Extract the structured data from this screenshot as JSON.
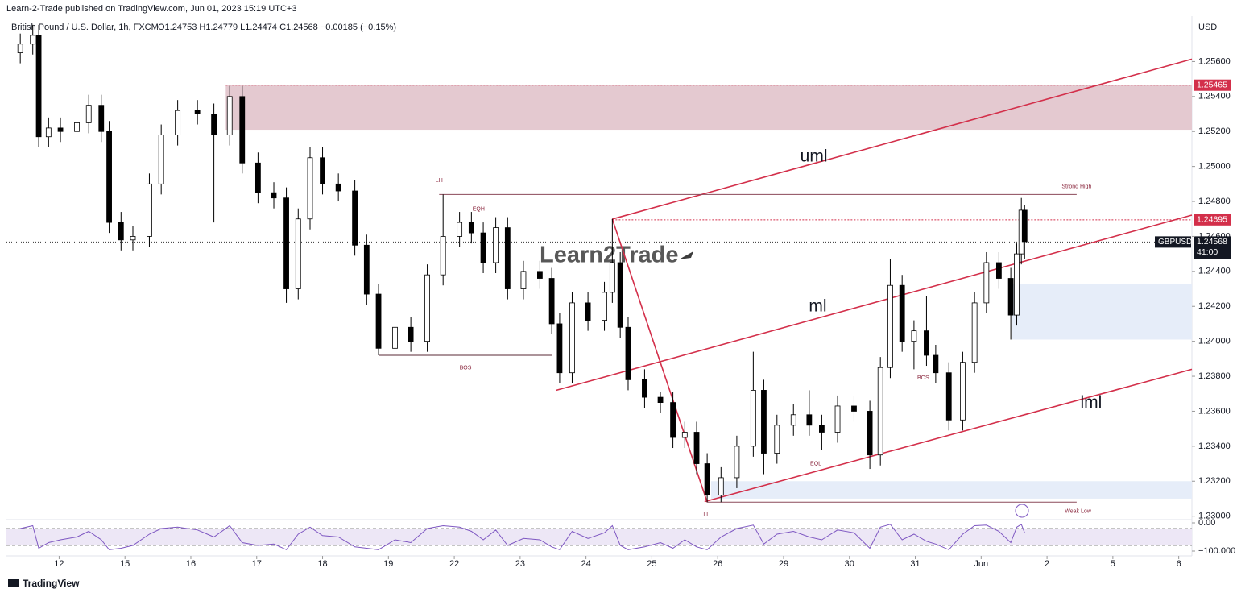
{
  "chart_data": {
    "type": "candlestick",
    "title": "Learn-2-Trade published on TradingView.com, Jun 01, 2023 15:19 UTC+3",
    "subtitle": "British Pound / U.S. Dollar, 1h, FXCM",
    "ohlc_text": "O1.24753 H1.24779 L1.24474 C1.24568 −0.00185 (−0.15%)",
    "currency": "USD",
    "watermark": "Learn2Trade",
    "footer": "TradingView",
    "up_color": "#ffffff",
    "down_color": "#000000",
    "line_color": "#d32f4a",
    "xlim": [
      -0.8,
      17.2
    ],
    "ylim": [
      1.2298,
      1.2586
    ],
    "xticks": [
      {
        "value": 0,
        "label": "12"
      },
      {
        "value": 1,
        "label": "15"
      },
      {
        "value": 2,
        "label": "16"
      },
      {
        "value": 3,
        "label": "17"
      },
      {
        "value": 4,
        "label": "18"
      },
      {
        "value": 5,
        "label": "19"
      },
      {
        "value": 6,
        "label": "22"
      },
      {
        "value": 7,
        "label": "23"
      },
      {
        "value": 8,
        "label": "24"
      },
      {
        "value": 9,
        "label": "25"
      },
      {
        "value": 10,
        "label": "26"
      },
      {
        "value": 11,
        "label": "29"
      },
      {
        "value": 12,
        "label": "30"
      },
      {
        "value": 13,
        "label": "31"
      },
      {
        "value": 14,
        "label": "Jun"
      },
      {
        "value": 15,
        "label": "2"
      },
      {
        "value": 16,
        "label": "5"
      },
      {
        "value": 17,
        "label": "6"
      }
    ],
    "yticks": [
      {
        "value": 1.256,
        "label": "1.25600"
      },
      {
        "value": 1.254,
        "label": "1.25400"
      },
      {
        "value": 1.252,
        "label": "1.25200"
      },
      {
        "value": 1.25,
        "label": "1.25000"
      },
      {
        "value": 1.248,
        "label": "1.24800"
      },
      {
        "value": 1.246,
        "label": "1.24600"
      },
      {
        "value": 1.244,
        "label": "1.24400"
      },
      {
        "value": 1.242,
        "label": "1.24200"
      },
      {
        "value": 1.24,
        "label": "1.24000"
      },
      {
        "value": 1.238,
        "label": "1.23800"
      },
      {
        "value": 1.236,
        "label": "1.23600"
      },
      {
        "value": 1.234,
        "label": "1.23400"
      },
      {
        "value": 1.232,
        "label": "1.23200"
      },
      {
        "value": 1.23,
        "label": "1.23000"
      }
    ],
    "x": [
      -0.59,
      -0.4,
      -0.31,
      -0.16,
      0.02,
      0.27,
      0.45,
      0.64,
      0.76,
      0.94,
      1.12,
      1.37,
      1.55,
      1.8,
      2.1,
      2.35,
      2.59,
      2.78,
      3.02,
      3.26,
      3.45,
      3.63,
      3.81,
      4.0,
      4.24,
      4.49,
      4.67,
      4.85,
      5.1,
      5.34,
      5.59,
      5.83,
      6.08,
      6.26,
      6.44,
      6.63,
      6.81,
      7.05,
      7.3,
      7.48,
      7.6,
      7.79,
      8.03,
      8.28,
      8.4,
      8.52,
      8.64,
      8.89,
      9.13,
      9.32,
      9.5,
      9.68,
      9.84,
      10.05,
      10.29,
      10.54,
      10.7,
      10.9,
      11.15,
      11.39,
      11.58,
      11.82,
      12.07,
      12.31,
      12.47,
      12.62,
      12.8,
      12.98,
      13.17,
      13.31,
      13.51,
      13.72,
      13.9,
      14.08,
      14.27,
      14.45,
      14.54,
      14.61,
      14.66
    ],
    "open": [
      1.2565,
      1.257,
      1.2575,
      1.2517,
      1.2522,
      1.252,
      1.2525,
      1.2535,
      1.252,
      1.2468,
      1.2458,
      1.246,
      1.249,
      1.2518,
      1.2532,
      1.253,
      1.2518,
      1.254,
      1.2502,
      1.2485,
      1.2482,
      1.243,
      1.247,
      1.2505,
      1.249,
      1.2486,
      1.2455,
      1.2427,
      1.2396,
      1.2408,
      1.24,
      1.2438,
      1.246,
      1.2468,
      1.2462,
      1.2445,
      1.2465,
      1.243,
      1.244,
      1.2436,
      1.241,
      1.2382,
      1.2422,
      1.2412,
      1.2428,
      1.2445,
      1.2408,
      1.2378,
      1.2368,
      1.2365,
      1.2345,
      1.2348,
      1.233,
      1.2312,
      1.2322,
      1.234,
      1.2372,
      1.2336,
      1.2352,
      1.2358,
      1.2352,
      1.2348,
      1.2363,
      1.236,
      1.2335,
      1.2385,
      1.2432,
      1.24,
      1.2406,
      1.2392,
      1.2382,
      1.2355,
      1.2388,
      1.2422,
      1.2445,
      1.2436,
      1.2415,
      1.245,
      1.2475
    ],
    "high": [
      1.2576,
      1.2581,
      1.2581,
      1.2528,
      1.2528,
      1.2531,
      1.2541,
      1.2541,
      1.2526,
      1.2474,
      1.2466,
      1.2496,
      1.2524,
      1.2538,
      1.2538,
      1.2536,
      1.2546,
      1.2546,
      1.2508,
      1.2491,
      1.2488,
      1.2476,
      1.2511,
      1.2511,
      1.2496,
      1.2492,
      1.2461,
      1.2433,
      1.2414,
      1.2414,
      1.2444,
      1.2484,
      1.2474,
      1.2474,
      1.2468,
      1.2471,
      1.2471,
      1.2446,
      1.2446,
      1.2442,
      1.2416,
      1.2428,
      1.2428,
      1.2434,
      1.247,
      1.2451,
      1.2414,
      1.2384,
      1.2371,
      1.2371,
      1.2354,
      1.2354,
      1.2336,
      1.2328,
      1.2346,
      1.2394,
      1.2378,
      1.2358,
      1.2364,
      1.2372,
      1.2358,
      1.2369,
      1.2369,
      1.2366,
      1.2391,
      1.2447,
      1.2438,
      1.2412,
      1.2426,
      1.2398,
      1.2388,
      1.2394,
      1.2428,
      1.2451,
      1.2451,
      1.2442,
      1.2456,
      1.2482,
      1.2478
    ],
    "low": [
      1.2559,
      1.2564,
      1.2511,
      1.2511,
      1.2514,
      1.2514,
      1.2519,
      1.2514,
      1.2462,
      1.2452,
      1.2452,
      1.2454,
      1.2484,
      1.2512,
      1.2524,
      1.2468,
      1.2512,
      1.2496,
      1.2479,
      1.2476,
      1.2422,
      1.2424,
      1.2464,
      1.2484,
      1.248,
      1.2449,
      1.2421,
      1.2392,
      1.2392,
      1.2394,
      1.2394,
      1.2432,
      1.2454,
      1.2456,
      1.2439,
      1.2439,
      1.2424,
      1.2424,
      1.243,
      1.2404,
      1.2376,
      1.2376,
      1.2406,
      1.2406,
      1.2422,
      1.2402,
      1.2372,
      1.2362,
      1.2359,
      1.2339,
      1.2339,
      1.2324,
      1.2308,
      1.2308,
      1.2316,
      1.2334,
      1.2324,
      1.233,
      1.2346,
      1.2346,
      1.2338,
      1.2342,
      1.2354,
      1.2327,
      1.2329,
      1.2379,
      1.2394,
      1.2384,
      1.2386,
      1.2376,
      1.2349,
      1.2349,
      1.2382,
      1.2416,
      1.243,
      1.2401,
      1.2409,
      1.2444,
      1.2447
    ],
    "close": [
      1.257,
      1.2575,
      1.2517,
      1.2522,
      1.252,
      1.2525,
      1.2535,
      1.252,
      1.2468,
      1.2458,
      1.246,
      1.249,
      1.2518,
      1.2532,
      1.253,
      1.2518,
      1.254,
      1.2502,
      1.2485,
      1.2482,
      1.243,
      1.247,
      1.2505,
      1.249,
      1.2486,
      1.2455,
      1.2427,
      1.2396,
      1.2408,
      1.24,
      1.2438,
      1.246,
      1.2468,
      1.2462,
      1.2445,
      1.2465,
      1.243,
      1.244,
      1.2436,
      1.241,
      1.2382,
      1.2422,
      1.2412,
      1.2428,
      1.2445,
      1.2408,
      1.2378,
      1.2368,
      1.2365,
      1.2345,
      1.2348,
      1.233,
      1.2312,
      1.2322,
      1.234,
      1.2372,
      1.2336,
      1.2352,
      1.2358,
      1.2352,
      1.2348,
      1.2363,
      1.236,
      1.2335,
      1.2385,
      1.2432,
      1.24,
      1.2406,
      1.2392,
      1.2382,
      1.2355,
      1.2388,
      1.2422,
      1.2445,
      1.2436,
      1.2415,
      1.245,
      1.2475,
      1.2457
    ],
    "zones": [
      {
        "x0": 2.53,
        "x1": 17.2,
        "y0": 1.2521,
        "y1": 1.25465,
        "color": "#e4c9d0"
      },
      {
        "x0": 14.47,
        "x1": 17.2,
        "y0": 1.2401,
        "y1": 1.2433,
        "color": "#e6edf9"
      },
      {
        "x0": 9.9,
        "x1": 17.2,
        "y0": 1.231,
        "y1": 1.232,
        "color": "#e6edf9"
      }
    ],
    "price_levels": [
      {
        "from": 2.53,
        "value": 1.25465,
        "color": "#d32f4a"
      },
      {
        "from": 8.4,
        "value": 1.24695,
        "color": "#d32f4a"
      }
    ],
    "last_price": {
      "symbol": "GBPUSD",
      "value": 1.24568,
      "countdown": "41:00"
    },
    "segments": [
      {
        "x0": 8.4,
        "y0": 1.24699,
        "x1": 17.2,
        "y1": 1.25614,
        "color": "#d32f4a"
      },
      {
        "x0": 7.55,
        "y0": 1.2372,
        "x1": 17.2,
        "y1": 1.24722,
        "color": "#d32f4a"
      },
      {
        "x0": 9.8,
        "y0": 1.23083,
        "x1": 17.2,
        "y1": 1.2384,
        "color": "#d32f4a"
      },
      {
        "x0": 8.4,
        "y0": 1.24699,
        "x1": 9.84,
        "y1": 1.2308,
        "color": "#d32f4a"
      },
      {
        "x0": 5.77,
        "y0": 1.2484,
        "x1": 15.45,
        "y1": 1.2484,
        "color": "#8c4a5a"
      },
      {
        "x0": 9.84,
        "y0": 1.2308,
        "x1": 15.45,
        "y1": 1.2308,
        "color": "#8c4a5a"
      },
      {
        "x0": 4.85,
        "y0": 1.2392,
        "x1": 7.48,
        "y1": 1.2392,
        "color": "#5a2a36"
      }
    ],
    "channel_labels": [
      {
        "text": "uml",
        "x": 11.46,
        "y": 1.25053
      },
      {
        "text": "ml",
        "x": 11.52,
        "y": 1.24196
      },
      {
        "text": "lml",
        "x": 15.67,
        "y": 1.23647
      }
    ],
    "markers": [
      {
        "text": "LH",
        "x": 5.77,
        "y": 1.2492
      },
      {
        "text": "EQH",
        "x": 6.37,
        "y": 1.24755
      },
      {
        "text": "BOS",
        "x": 6.17,
        "y": 1.23848
      },
      {
        "text": "LL",
        "x": 9.83,
        "y": 1.2301
      },
      {
        "text": "EQL",
        "x": 11.49,
        "y": 1.233
      },
      {
        "text": "Strong High",
        "x": 15.45,
        "y": 1.24884
      },
      {
        "text": "Weak Low",
        "x": 15.47,
        "y": 1.23027
      },
      {
        "text": "BOS",
        "x": 13.12,
        "y": 1.2379
      }
    ],
    "indicator": {
      "ylim": [
        -100,
        0
      ],
      "bands": [
        -20,
        -80
      ],
      "color": "#7e57c2",
      "yticks": [
        {
          "value": 0,
          "label": "0.00"
        },
        {
          "value": -100,
          "label": "−100.000"
        }
      ],
      "values": [
        -20,
        -10,
        -90,
        -70,
        -60,
        -50,
        -30,
        -60,
        -95,
        -90,
        -80,
        -40,
        -20,
        -15,
        -25,
        -50,
        -10,
        -70,
        -80,
        -75,
        -95,
        -40,
        -15,
        -45,
        -50,
        -85,
        -90,
        -95,
        -60,
        -70,
        -20,
        -10,
        -15,
        -30,
        -60,
        -25,
        -80,
        -55,
        -60,
        -85,
        -95,
        -30,
        -55,
        -35,
        -10,
        -80,
        -95,
        -85,
        -70,
        -90,
        -60,
        -85,
        -95,
        -50,
        -20,
        -8,
        -75,
        -40,
        -30,
        -50,
        -60,
        -25,
        -35,
        -90,
        -15,
        -5,
        -60,
        -40,
        -65,
        -75,
        -95,
        -40,
        -10,
        -8,
        -30,
        -70,
        -15,
        -5,
        -35
      ]
    }
  }
}
